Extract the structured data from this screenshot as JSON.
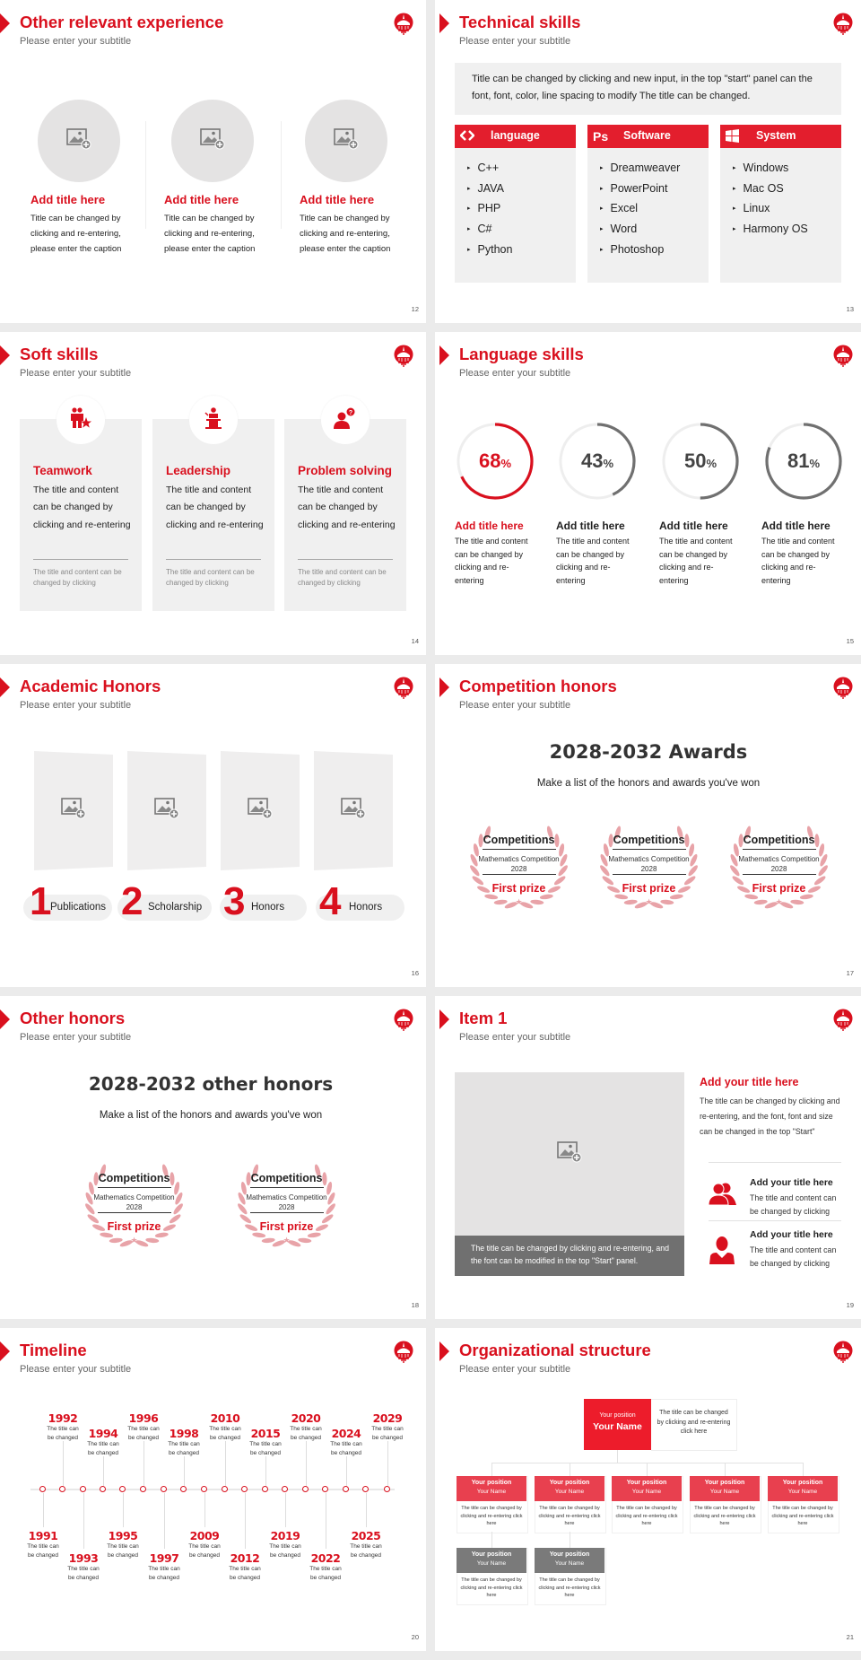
{
  "theme": {
    "accent": "#d9101e",
    "accent_light": "#e8404f",
    "gray_fill": "#f0f0f0",
    "dark_gray": "#707070",
    "laurel": "#e8a3a8"
  },
  "slides": [
    {
      "title": "Other relevant experience",
      "subtitle": "Please enter your subtitle",
      "page": "12"
    },
    {
      "title": "Technical skills",
      "subtitle": "Please enter your subtitle",
      "page": "13"
    },
    {
      "title": "Soft skills",
      "subtitle": "Please enter your subtitle",
      "page": "14"
    },
    {
      "title": "Language skills",
      "subtitle": "Please enter your subtitle",
      "page": "15"
    },
    {
      "title": "Academic Honors",
      "subtitle": "Please enter your subtitle",
      "page": "16"
    },
    {
      "title": "Competition honors",
      "subtitle": "Please enter your subtitle",
      "page": "17"
    },
    {
      "title": "Other honors",
      "subtitle": "Please enter your subtitle",
      "page": "18"
    },
    {
      "title": "Item 1",
      "subtitle": "Please enter your subtitle",
      "page": "19"
    },
    {
      "title": "Timeline",
      "subtitle": "Please enter your subtitle",
      "page": "20"
    },
    {
      "title": "Organizational structure",
      "subtitle": "Please enter your subtitle",
      "page": "21"
    }
  ],
  "experience": {
    "items": [
      {
        "icon": "image-placeholder-icon",
        "title": "Add title here",
        "body": "Title can be changed by clicking and re-entering, please enter the caption"
      },
      {
        "icon": "image-placeholder-icon",
        "title": "Add title here",
        "body": "Title can be changed by clicking and re-entering, please enter the caption"
      },
      {
        "icon": "image-placeholder-icon",
        "title": "Add title here",
        "body": "Title can be changed by clicking and re-entering, please enter the caption"
      }
    ]
  },
  "tech": {
    "intro": "Title can be changed by clicking and new input, in the top \"start\" panel can the font, font, color, line spacing to modify The title can be changed.",
    "columns": [
      {
        "icon": "code-brackets-icon",
        "label": "language",
        "items": [
          "C++",
          "JAVA",
          "PHP",
          "C#",
          "Python"
        ]
      },
      {
        "icon": "photoshop-icon",
        "icon_text": "Ps",
        "label": "Software",
        "items": [
          "Dreamweaver",
          "PowerPoint",
          "Excel",
          "Word",
          "Photoshop"
        ]
      },
      {
        "icon": "windows-icon",
        "label": "System",
        "items": [
          "Windows",
          "Mac OS",
          "Linux",
          "Harmony OS"
        ]
      }
    ]
  },
  "soft": {
    "cards": [
      {
        "icon": "teamwork-icon",
        "title": "Teamwork",
        "body": "The title and content can be changed by clicking and re-entering",
        "note": "The title and content can be changed by clicking"
      },
      {
        "icon": "podium-speaker-icon",
        "title": "Leadership",
        "body": "The title and content can be changed by clicking and re-entering",
        "note": "The title and content can be changed by clicking"
      },
      {
        "icon": "person-question-icon",
        "title": "Problem solving",
        "body": "The title and content can be changed by clicking and re-entering",
        "note": "The title and content can be changed by clicking"
      }
    ]
  },
  "language": {
    "items": [
      {
        "percent": 68,
        "value": "68",
        "unit": "%",
        "color": "#d9101e",
        "title": "Add title here",
        "body": "The title and content can be changed by clicking and re-entering"
      },
      {
        "percent": 43,
        "value": "43",
        "unit": "%",
        "color": "#707070",
        "title": "Add title here",
        "body": "The title and content can be changed by clicking and re-entering"
      },
      {
        "percent": 50,
        "value": "50",
        "unit": "%",
        "color": "#707070",
        "title": "Add title here",
        "body": "The title and content can be changed by clicking and re-entering"
      },
      {
        "percent": 81,
        "value": "81",
        "unit": "%",
        "color": "#707070",
        "title": "Add title here",
        "body": "The title and content can be changed by clicking and re-entering"
      }
    ]
  },
  "academic": {
    "items": [
      {
        "number": "1",
        "label": "Publications"
      },
      {
        "number": "2",
        "label": "Scholarship"
      },
      {
        "number": "3",
        "label": "Honors"
      },
      {
        "number": "4",
        "label": "Honors"
      }
    ]
  },
  "competition": {
    "heading": "2028-2032 Awards",
    "subheading": "Make a list of the honors and awards you've won",
    "badges": [
      {
        "title": "Competitions",
        "event": "Mathematics Competition",
        "year": "2028",
        "prize": "First prize"
      },
      {
        "title": "Competitions",
        "event": "Mathematics Competition",
        "year": "2028",
        "prize": "First prize"
      },
      {
        "title": "Competitions",
        "event": "Mathematics Competition",
        "year": "2028",
        "prize": "First prize"
      }
    ]
  },
  "other": {
    "heading": "2028-2032 other honors",
    "subheading": "Make a list of the honors and awards you've won",
    "badges": [
      {
        "title": "Competitions",
        "event": "Mathematics Competition",
        "year": "2028",
        "prize": "First prize"
      },
      {
        "title": "Competitions",
        "event": "Mathematics Competition",
        "year": "2028",
        "prize": "First prize"
      }
    ]
  },
  "item1": {
    "caption": "The title can be changed by clicking and re-entering, and the font can be modified in the top \"Start\" panel.",
    "title": "Add your title here",
    "body": "The title can be changed by clicking and re-entering, and the font, font and size can be changed in the top \"Start\"",
    "points": [
      {
        "icon": "people-group-icon",
        "title": "Add your title here",
        "body": "The title and content can be changed by clicking"
      },
      {
        "icon": "person-icon",
        "title": "Add your title here",
        "body": "The title and content can be changed by clicking"
      }
    ]
  },
  "timeline": {
    "events": [
      {
        "year": "1991",
        "caption": "The title can be changed",
        "side": "below"
      },
      {
        "year": "1992",
        "caption": "The title can be changed",
        "side": "above"
      },
      {
        "year": "1993",
        "caption": "The title can be changed",
        "side": "below"
      },
      {
        "year": "1994",
        "caption": "The title can be changed",
        "side": "above"
      },
      {
        "year": "1995",
        "caption": "The title can be changed",
        "side": "below"
      },
      {
        "year": "1996",
        "caption": "The title can be changed",
        "side": "above"
      },
      {
        "year": "1997",
        "caption": "The title can be changed",
        "side": "below"
      },
      {
        "year": "1998",
        "caption": "The title can be changed",
        "side": "above"
      },
      {
        "year": "2009",
        "caption": "The title can be changed",
        "side": "below"
      },
      {
        "year": "2010",
        "caption": "The title can be changed",
        "side": "above"
      },
      {
        "year": "2012",
        "caption": "The title can be changed",
        "side": "below"
      },
      {
        "year": "2015",
        "caption": "The title can be changed",
        "side": "above"
      },
      {
        "year": "2019",
        "caption": "The title can be changed",
        "side": "below"
      },
      {
        "year": "2020",
        "caption": "The title can be changed",
        "side": "above"
      },
      {
        "year": "2022",
        "caption": "The title can be changed",
        "side": "below"
      },
      {
        "year": "2024",
        "caption": "The title can be changed",
        "side": "above"
      },
      {
        "year": "2025",
        "caption": "The title can be changed",
        "side": "below"
      },
      {
        "year": "2029",
        "caption": "The title can be changed",
        "side": "above"
      }
    ]
  },
  "org": {
    "top": {
      "position": "Your position",
      "name": "Your Name",
      "note": "The title can be changed by clicking and re-entering click here"
    },
    "level2": [
      {
        "position": "Your position",
        "name": "Your Name",
        "note": "The title can be changed by clicking and re-entering click here"
      },
      {
        "position": "Your position",
        "name": "Your Name",
        "note": "The title can be changed by clicking and re-entering click here"
      },
      {
        "position": "Your position",
        "name": "Your Name",
        "note": "The title can be changed by clicking and re-entering click here"
      },
      {
        "position": "Your position",
        "name": "Your Name",
        "note": "The title can be changed by clicking and re-entering click here"
      },
      {
        "position": "Your position",
        "name": "Your Name",
        "note": "The title can be changed by clicking and re-entering click here"
      }
    ],
    "level3": [
      {
        "position": "Your position",
        "name": "Your Name",
        "note": "The title can be changed by clicking and re-entering click here"
      },
      {
        "position": "Your position",
        "name": "Your Name",
        "note": "The title can be changed by clicking and re-entering click here"
      }
    ]
  }
}
